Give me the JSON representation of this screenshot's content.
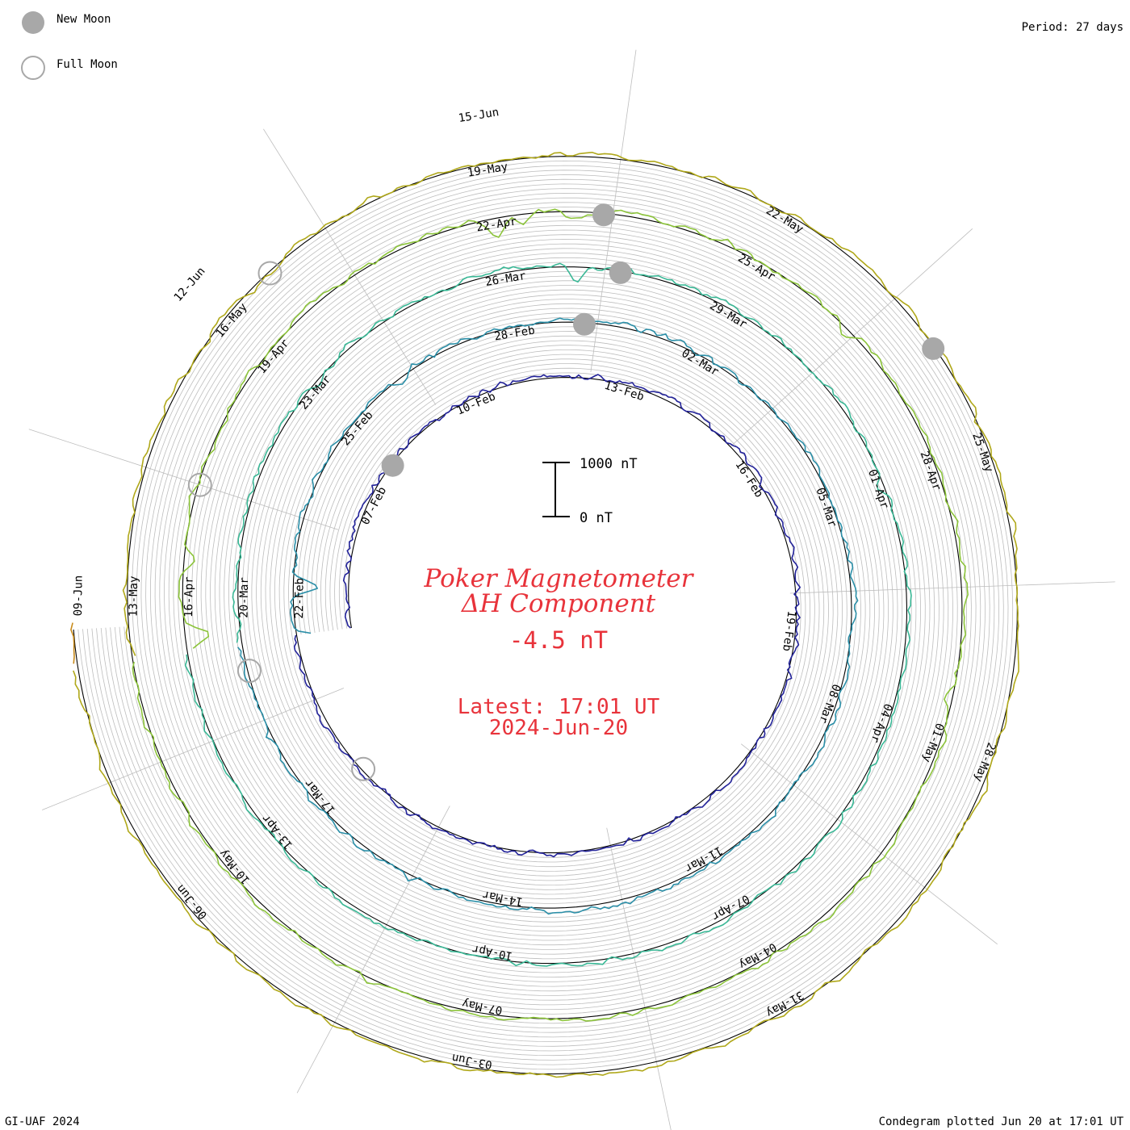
{
  "legend": {
    "new_moon_label": "New Moon",
    "full_moon_label": "Full Moon"
  },
  "period_label": "Period: 27 days",
  "footer": {
    "left": "GI-UAF 2024",
    "right": "Condegram plotted Jun 20 at 17:01 UT"
  },
  "scale_bar": {
    "top_label": "1000 nT",
    "bottom_label": "0 nT"
  },
  "title": {
    "line1": "Poker Magnetometer",
    "line2": "ΔH Component",
    "value": "-4.5 nT",
    "latest": "Latest: 17:01 UT",
    "date": "2024-Jun-20"
  },
  "colors": {
    "title": "#e8333b",
    "grid": "#bdbdbd",
    "baseline": "#000000",
    "moon_fill": "#a8a8a8",
    "moon_stroke": "#a8a8a8",
    "rotations": [
      "#111111",
      "#23239a",
      "#2b8fa8",
      "#3ab896",
      "#8cc43a",
      "#b0a81a",
      "#c88a1a",
      "#b8331a"
    ]
  },
  "chart_data": {
    "type": "line",
    "title": "Poker Magnetometer ΔH Component",
    "period_days": 27,
    "latest_value_nT": -4.5,
    "rotations": [
      {
        "index": 0,
        "date_labels": [
          "07-Feb",
          "10-Feb",
          "13-Feb",
          "16-Feb",
          "19-Feb"
        ],
        "new_moon_days": [
          2.2
        ],
        "full_moon_days": [],
        "events": []
      },
      {
        "index": 1,
        "date_labels": [
          "22-Feb",
          "25-Feb",
          "28-Feb",
          "02-Mar",
          "05-Mar",
          "08-Mar",
          "11-Mar",
          "14-Mar",
          "17-Mar"
        ],
        "new_moon_days": [
          33.4
        ],
        "full_moon_days": [
          23.2
        ],
        "events": [
          [
            25.5,
            650
          ],
          [
            26.5,
            450
          ],
          [
            30.3,
            160
          ],
          [
            36.2,
            90
          ]
        ]
      },
      {
        "index": 2,
        "date_labels": [
          "20-Mar",
          "23-Mar",
          "26-Mar",
          "29-Mar",
          "01-Apr",
          "04-Apr",
          "07-Apr",
          "10-Apr",
          "13-Apr"
        ],
        "new_moon_days": [
          60.8
        ],
        "full_moon_days": [
          52.3
        ],
        "events": [
          [
            46.5,
            350
          ],
          [
            50.6,
            120
          ],
          [
            51.8,
            500
          ],
          [
            52.0,
            300
          ],
          [
            56.6,
            140
          ],
          [
            60.3,
            280
          ],
          [
            65.2,
            220
          ]
        ]
      },
      {
        "index": 3,
        "date_labels": [
          "16-Apr",
          "19-Apr",
          "22-Apr",
          "25-Apr",
          "28-Apr",
          "01-May",
          "04-May",
          "07-May",
          "10-May"
        ],
        "new_moon_days": [
          87.5
        ],
        "full_moon_days": [
          81.6
        ],
        "events": [
          [
            79.8,
            450
          ],
          [
            80.8,
            250
          ],
          [
            82.3,
            120
          ],
          [
            86.4,
            520
          ],
          [
            87.2,
            200
          ],
          [
            90.5,
            160
          ],
          [
            94.8,
            210
          ]
        ]
      },
      {
        "index": 4,
        "date_labels": [
          "13-May",
          "16-May",
          "19-May",
          "22-May",
          "25-May",
          "28-May",
          "31-May",
          "03-Jun",
          "06-Jun"
        ],
        "new_moon_days": [
          118.2
        ],
        "full_moon_days": [
          110.9
        ],
        "events": [
          [
            99.4,
            700
          ],
          [
            100.0,
            550
          ],
          [
            101.0,
            400
          ],
          [
            104.0,
            300
          ],
          [
            104.8,
            500
          ],
          [
            106.4,
            250
          ],
          [
            110.8,
            150
          ]
        ]
      },
      {
        "index": 5,
        "date_labels": [
          "09-Jun",
          "12-Jun",
          "15-Jun"
        ],
        "new_moon_days": [],
        "full_moon_days": [],
        "events": [
          [
            127.2,
            160
          ],
          [
            130.3,
            140
          ],
          [
            132.0,
            110
          ]
        ]
      }
    ]
  }
}
